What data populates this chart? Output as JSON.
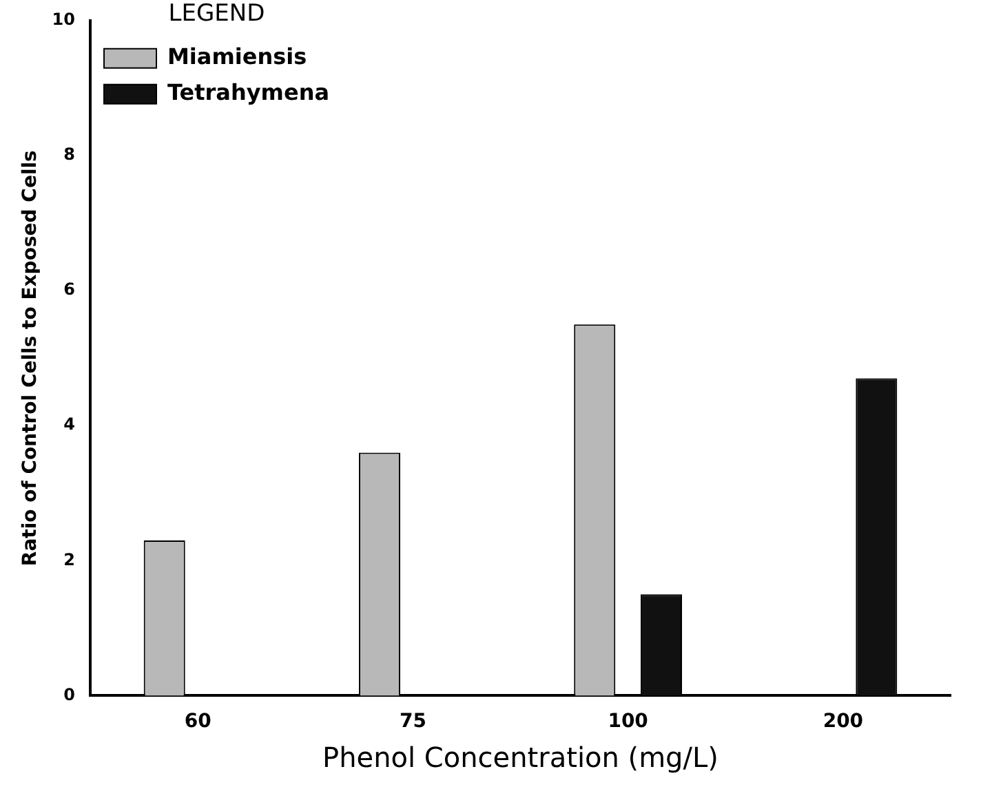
{
  "chart_data": {
    "type": "bar",
    "xlabel": "Phenol Concentration (mg/L)",
    "ylabel": "Ratio of Control Cells to Exposed Cells",
    "legend_title": "LEGEND",
    "categories": [
      "60",
      "75",
      "100",
      "200"
    ],
    "series": [
      {
        "name": "Miamiensis",
        "color": "#b8b8b8",
        "values": [
          2.3,
          3.6,
          5.5,
          null
        ]
      },
      {
        "name": "Tetrahymena",
        "color": "#111111",
        "values": [
          null,
          null,
          1.5,
          4.7
        ]
      }
    ],
    "ylim": [
      0,
      10
    ],
    "yticks": [
      0,
      2,
      4,
      6,
      8,
      10
    ],
    "grid": false,
    "legend": "top left"
  }
}
